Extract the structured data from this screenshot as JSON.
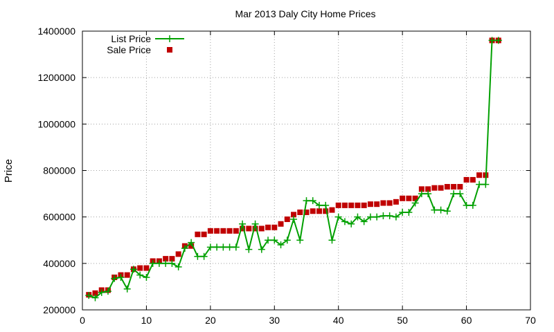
{
  "chart_data": {
    "type": "line",
    "title": "Mar 2013 Daly City Home Prices",
    "xlabel": "",
    "ylabel": "Price",
    "xlim": [
      0,
      70
    ],
    "ylim": [
      200000,
      1400000
    ],
    "xticks": [
      0,
      10,
      20,
      30,
      40,
      50,
      60,
      70
    ],
    "yticks": [
      200000,
      400000,
      600000,
      800000,
      1000000,
      1200000,
      1400000
    ],
    "grid": true,
    "legend_position": "top-left",
    "x": [
      1,
      2,
      3,
      4,
      5,
      6,
      7,
      8,
      9,
      10,
      11,
      12,
      13,
      14,
      15,
      16,
      17,
      18,
      19,
      20,
      21,
      22,
      23,
      24,
      25,
      26,
      27,
      28,
      29,
      30,
      31,
      32,
      33,
      34,
      35,
      36,
      37,
      38,
      39,
      40,
      41,
      42,
      43,
      44,
      45,
      46,
      47,
      48,
      49,
      50,
      51,
      52,
      53,
      54,
      55,
      56,
      57,
      58,
      59,
      60,
      61,
      62,
      63,
      64,
      65
    ],
    "series": [
      {
        "name": "List Price",
        "style": "linespoints",
        "color": "#00a000",
        "values": [
          262000,
          252000,
          275000,
          280000,
          335000,
          340000,
          290000,
          375000,
          350000,
          340000,
          400000,
          400000,
          400000,
          400000,
          385000,
          465000,
          490000,
          430000,
          430000,
          470000,
          470000,
          470000,
          470000,
          470000,
          570000,
          460000,
          570000,
          460000,
          500000,
          500000,
          480000,
          500000,
          590000,
          500000,
          670000,
          670000,
          650000,
          650000,
          500000,
          600000,
          580000,
          570000,
          600000,
          580000,
          600000,
          600000,
          605000,
          605000,
          600000,
          620000,
          620000,
          660000,
          700000,
          700000,
          630000,
          630000,
          625000,
          700000,
          700000,
          650000,
          650000,
          740000,
          740000,
          1360000,
          1360000
        ]
      },
      {
        "name": "Sale Price",
        "style": "points",
        "color": "#c00000",
        "values": [
          265000,
          272000,
          285000,
          285000,
          340000,
          350000,
          350000,
          375000,
          380000,
          380000,
          410000,
          410000,
          420000,
          420000,
          440000,
          475000,
          475000,
          525000,
          525000,
          540000,
          540000,
          540000,
          540000,
          540000,
          550000,
          550000,
          550000,
          550000,
          555000,
          555000,
          570000,
          590000,
          610000,
          620000,
          620000,
          625000,
          625000,
          625000,
          630000,
          650000,
          650000,
          650000,
          650000,
          650000,
          655000,
          655000,
          660000,
          660000,
          665000,
          680000,
          680000,
          680000,
          720000,
          720000,
          725000,
          725000,
          730000,
          730000,
          730000,
          760000,
          760000,
          780000,
          780000,
          1360000,
          1360000
        ]
      }
    ]
  }
}
